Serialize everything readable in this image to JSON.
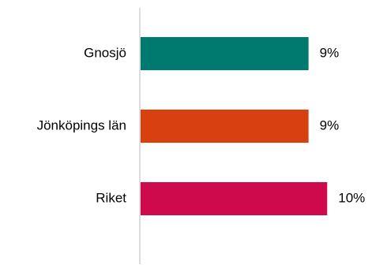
{
  "chart_data": {
    "type": "bar",
    "orientation": "horizontal",
    "title": "",
    "xlabel": "",
    "ylabel": "",
    "categories": [
      "Gnosjö",
      "Jönköpings län",
      "Riket"
    ],
    "values": [
      9,
      9,
      10
    ],
    "value_labels": [
      "9%",
      "9%",
      "10%"
    ],
    "bar_colors": [
      "#007a6e",
      "#d8400f",
      "#cf0a4c"
    ],
    "xlim": [
      0,
      10.2
    ],
    "grid": false,
    "legend": "none"
  },
  "colors": {
    "axis": "#d0d0d0",
    "text": "#000000"
  }
}
